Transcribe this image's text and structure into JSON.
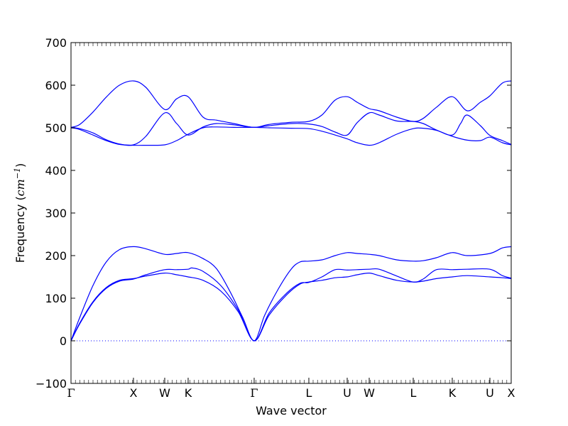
{
  "chart_data": {
    "type": "line",
    "xlabel": "Wave vector",
    "ylabel": {
      "prefix": "Frequency (",
      "unit": "cm",
      "exponent": "−1",
      "suffix": ")"
    },
    "ylim": [
      -100,
      700
    ],
    "yticks": [
      -100,
      0,
      100,
      200,
      300,
      400,
      500,
      600,
      700
    ],
    "ytick_labels": [
      "−100",
      "0",
      "100",
      "200",
      "300",
      "400",
      "500",
      "600",
      "700"
    ],
    "xlim": [
      0,
      1
    ],
    "xticks": [
      {
        "label": "Γ",
        "x": 0.0,
        "symbol": true
      },
      {
        "label": "X",
        "x": 0.1419
      },
      {
        "label": "W",
        "x": 0.2129
      },
      {
        "label": "K",
        "x": 0.2661
      },
      {
        "label": "Γ",
        "x": 0.4161,
        "symbol": true
      },
      {
        "label": "L",
        "x": 0.5403
      },
      {
        "label": "U",
        "x": 0.6274
      },
      {
        "label": "W",
        "x": 0.6774
      },
      {
        "label": "L",
        "x": 0.7774
      },
      {
        "label": "K",
        "x": 0.8661
      },
      {
        "label": "U",
        "x": 0.9516
      },
      {
        "label": "X",
        "x": 1.0
      }
    ],
    "zero_line": {
      "y": 0,
      "style": "dotted",
      "color": "#0000ff"
    },
    "line_color": "#0000ff",
    "grid": false,
    "series": [
      {
        "values": [
          [
            0,
            0
          ],
          [
            0.02,
            42
          ],
          [
            0.05,
            92
          ],
          [
            0.08,
            125
          ],
          [
            0.11,
            142
          ],
          [
            0.1419,
            146
          ],
          [
            0.17,
            152
          ],
          [
            0.2129,
            159
          ],
          [
            0.24,
            155
          ],
          [
            0.2661,
            150
          ],
          [
            0.3,
            142
          ],
          [
            0.34,
            117
          ],
          [
            0.38,
            68
          ],
          [
            0.4161,
            0
          ],
          [
            0.45,
            60
          ],
          [
            0.49,
            108
          ],
          [
            0.52,
            133
          ],
          [
            0.5403,
            138
          ],
          [
            0.57,
            142
          ],
          [
            0.6,
            148
          ],
          [
            0.6274,
            150
          ],
          [
            0.65,
            155
          ],
          [
            0.6774,
            159
          ],
          [
            0.7,
            153
          ],
          [
            0.74,
            142
          ],
          [
            0.7774,
            138
          ],
          [
            0.8,
            140
          ],
          [
            0.83,
            146
          ],
          [
            0.8661,
            150
          ],
          [
            0.9,
            153
          ],
          [
            0.9516,
            150
          ],
          [
            0.98,
            148
          ],
          [
            1.0,
            146
          ]
        ]
      },
      {
        "values": [
          [
            0,
            0
          ],
          [
            0.02,
            40
          ],
          [
            0.05,
            90
          ],
          [
            0.08,
            123
          ],
          [
            0.11,
            140
          ],
          [
            0.1419,
            145
          ],
          [
            0.17,
            155
          ],
          [
            0.2129,
            167
          ],
          [
            0.24,
            167
          ],
          [
            0.2661,
            168
          ],
          [
            0.275,
            171
          ],
          [
            0.3,
            163
          ],
          [
            0.34,
            130
          ],
          [
            0.38,
            72
          ],
          [
            0.4161,
            0
          ],
          [
            0.45,
            65
          ],
          [
            0.49,
            112
          ],
          [
            0.52,
            135
          ],
          [
            0.5403,
            137
          ],
          [
            0.57,
            150
          ],
          [
            0.6,
            167
          ],
          [
            0.6274,
            166
          ],
          [
            0.65,
            167
          ],
          [
            0.6774,
            168
          ],
          [
            0.7,
            168
          ],
          [
            0.74,
            152
          ],
          [
            0.7774,
            138
          ],
          [
            0.8,
            145
          ],
          [
            0.83,
            167
          ],
          [
            0.8661,
            167
          ],
          [
            0.9,
            168
          ],
          [
            0.9516,
            168
          ],
          [
            0.98,
            153
          ],
          [
            1.0,
            147
          ]
        ]
      },
      {
        "values": [
          [
            0,
            0
          ],
          [
            0.02,
            55
          ],
          [
            0.05,
            130
          ],
          [
            0.08,
            185
          ],
          [
            0.11,
            214
          ],
          [
            0.1419,
            221
          ],
          [
            0.17,
            216
          ],
          [
            0.2129,
            203
          ],
          [
            0.24,
            205
          ],
          [
            0.2661,
            207
          ],
          [
            0.3,
            193
          ],
          [
            0.33,
            170
          ],
          [
            0.36,
            118
          ],
          [
            0.39,
            55
          ],
          [
            0.4161,
            0
          ],
          [
            0.44,
            60
          ],
          [
            0.47,
            120
          ],
          [
            0.5,
            168
          ],
          [
            0.52,
            185
          ],
          [
            0.5403,
            187
          ],
          [
            0.57,
            190
          ],
          [
            0.6,
            200
          ],
          [
            0.6274,
            207
          ],
          [
            0.65,
            205
          ],
          [
            0.6774,
            203
          ],
          [
            0.7,
            200
          ],
          [
            0.74,
            190
          ],
          [
            0.7774,
            187
          ],
          [
            0.8,
            188
          ],
          [
            0.83,
            195
          ],
          [
            0.8661,
            207
          ],
          [
            0.9,
            200
          ],
          [
            0.9516,
            205
          ],
          [
            0.98,
            218
          ],
          [
            1.0,
            221
          ]
        ]
      },
      {
        "values": [
          [
            0,
            500
          ],
          [
            0.02,
            496
          ],
          [
            0.05,
            483
          ],
          [
            0.08,
            470
          ],
          [
            0.11,
            461
          ],
          [
            0.1419,
            459
          ],
          [
            0.17,
            459
          ],
          [
            0.2129,
            460
          ],
          [
            0.24,
            470
          ],
          [
            0.2661,
            485
          ],
          [
            0.3,
            500
          ],
          [
            0.33,
            502
          ],
          [
            0.37,
            501
          ],
          [
            0.4161,
            501
          ],
          [
            0.45,
            500
          ],
          [
            0.5,
            499
          ],
          [
            0.5403,
            498
          ],
          [
            0.57,
            492
          ],
          [
            0.6,
            483
          ],
          [
            0.6274,
            474
          ],
          [
            0.65,
            465
          ],
          [
            0.6774,
            459
          ],
          [
            0.7,
            465
          ],
          [
            0.74,
            485
          ],
          [
            0.7774,
            498
          ],
          [
            0.8,
            499
          ],
          [
            0.83,
            494
          ],
          [
            0.8661,
            480
          ],
          [
            0.9,
            471
          ],
          [
            0.93,
            470
          ],
          [
            0.9516,
            478
          ],
          [
            0.98,
            465
          ],
          [
            1.0,
            460
          ]
        ]
      },
      {
        "values": [
          [
            0,
            501
          ],
          [
            0.02,
            498
          ],
          [
            0.05,
            488
          ],
          [
            0.08,
            472
          ],
          [
            0.11,
            462
          ],
          [
            0.1419,
            460
          ],
          [
            0.17,
            480
          ],
          [
            0.2129,
            535
          ],
          [
            0.24,
            510
          ],
          [
            0.2661,
            483
          ],
          [
            0.3,
            502
          ],
          [
            0.33,
            510
          ],
          [
            0.37,
            507
          ],
          [
            0.4161,
            501
          ],
          [
            0.45,
            505
          ],
          [
            0.5,
            510
          ],
          [
            0.5403,
            509
          ],
          [
            0.57,
            503
          ],
          [
            0.6,
            490
          ],
          [
            0.6274,
            483
          ],
          [
            0.65,
            512
          ],
          [
            0.6774,
            535
          ],
          [
            0.7,
            530
          ],
          [
            0.74,
            516
          ],
          [
            0.7774,
            515
          ],
          [
            0.8,
            510
          ],
          [
            0.83,
            495
          ],
          [
            0.8661,
            483
          ],
          [
            0.885,
            510
          ],
          [
            0.9,
            530
          ],
          [
            0.93,
            505
          ],
          [
            0.9516,
            482
          ],
          [
            0.98,
            470
          ],
          [
            1.0,
            461
          ]
        ]
      },
      {
        "values": [
          [
            0,
            501
          ],
          [
            0.02,
            508
          ],
          [
            0.05,
            537
          ],
          [
            0.08,
            572
          ],
          [
            0.11,
            600
          ],
          [
            0.1419,
            610
          ],
          [
            0.17,
            595
          ],
          [
            0.2129,
            543
          ],
          [
            0.24,
            568
          ],
          [
            0.2661,
            573
          ],
          [
            0.3,
            525
          ],
          [
            0.33,
            518
          ],
          [
            0.37,
            510
          ],
          [
            0.4161,
            501
          ],
          [
            0.45,
            508
          ],
          [
            0.5,
            513
          ],
          [
            0.5403,
            515
          ],
          [
            0.57,
            530
          ],
          [
            0.6,
            565
          ],
          [
            0.6274,
            573
          ],
          [
            0.65,
            560
          ],
          [
            0.6774,
            545
          ],
          [
            0.7,
            540
          ],
          [
            0.74,
            525
          ],
          [
            0.7774,
            515
          ],
          [
            0.8,
            522
          ],
          [
            0.83,
            548
          ],
          [
            0.8661,
            573
          ],
          [
            0.9,
            540
          ],
          [
            0.93,
            560
          ],
          [
            0.9516,
            575
          ],
          [
            0.98,
            605
          ],
          [
            1.0,
            610
          ]
        ]
      }
    ]
  }
}
